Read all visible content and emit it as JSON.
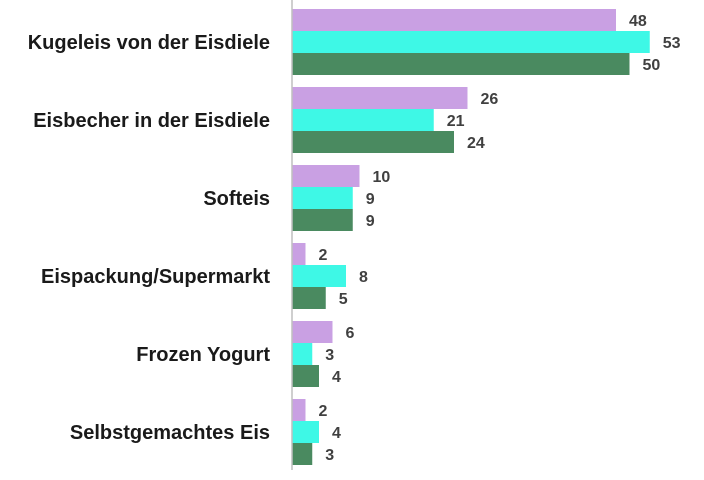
{
  "chart_data": {
    "type": "bar",
    "orientation": "horizontal",
    "categories": [
      "Kugeleis von der Eisdiele",
      "Eisbecher in der Eisdiele",
      "Softeis",
      "Eispackung/Supermarkt",
      "Frozen Yogurt",
      "Selbstgemachtes Eis"
    ],
    "series": [
      {
        "values": [
          48,
          26,
          10,
          2,
          6,
          2
        ],
        "color": "#c9a0e3"
      },
      {
        "values": [
          53,
          21,
          9,
          8,
          3,
          4
        ],
        "color": "#3ef8e6"
      },
      {
        "values": [
          50,
          24,
          9,
          5,
          4,
          3
        ],
        "color": "#4a8a60"
      }
    ],
    "xlim": [
      0,
      60
    ],
    "grid": false,
    "legend": "none",
    "data_labels": true,
    "axis_color": "#bfbfbf"
  }
}
